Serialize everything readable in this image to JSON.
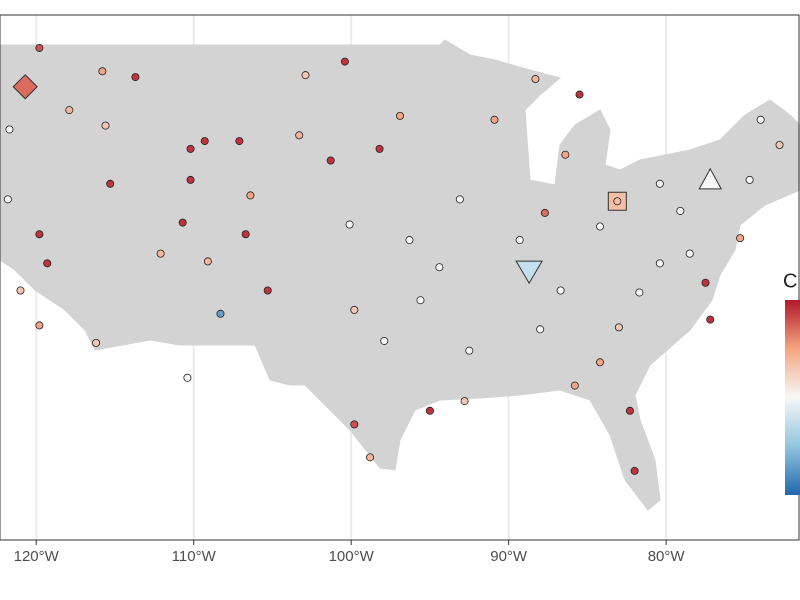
{
  "chart_data": {
    "type": "scatter",
    "xlim": [
      -122.3,
      -71.5
    ],
    "ylim": [
      23.44,
      50.5
    ],
    "xticks": [
      {
        "value": -120,
        "label": "120°W"
      },
      {
        "value": -110,
        "label": "110°W"
      },
      {
        "value": -100,
        "label": "100°W"
      },
      {
        "value": -90,
        "label": "90°W"
      },
      {
        "value": -80,
        "label": "80°W"
      }
    ],
    "grid": true,
    "legend_title": "C",
    "clim": [
      -1,
      1
    ],
    "colorscale": [
      "#2166ac",
      "#92c5de",
      "#f7f7f7",
      "#f4a582",
      "#b2182b"
    ],
    "points": {
      "x": [
        -119.8,
        -115.8,
        -113.7,
        -117.9,
        -115.6,
        -110.2,
        -109.3,
        -107.1,
        -110.2,
        -115.3,
        -106.4,
        -110.7,
        -106.7,
        -119.8,
        -119.3,
        -112.1,
        -109.1,
        -108.3,
        -110.4,
        -116.2,
        -105.3,
        -102.9,
        -100.4,
        -98.2,
        -100.1,
        -96.3,
        -99.8,
        -97.9,
        -99.8,
        -98.8,
        -95.0,
        -92.8,
        -90.9,
        -88.3,
        -85.5,
        -86.4,
        -87.7,
        -89.3,
        -86.7,
        -88.0,
        -85.8,
        -82.3,
        -82.0,
        -84.2,
        -81.7,
        -80.4,
        -77.5,
        -78.5,
        -75.3,
        -74.7,
        -72.8,
        -80.4,
        -79.1,
        -84.2,
        -93.1,
        -94.4,
        -95.6,
        -92.5,
        -121.7,
        -121.8,
        -121.0,
        -119.8,
        -103.3,
        -101.3,
        -96.9,
        -74.0,
        -83.0,
        -77.2
      ],
      "y": [
        48.8,
        47.6,
        47.3,
        45.6,
        44.8,
        43.6,
        44.0,
        44.0,
        42.0,
        41.8,
        41.2,
        39.8,
        39.2,
        39.2,
        37.7,
        38.2,
        37.8,
        35.1,
        31.8,
        33.6,
        36.3,
        47.4,
        48.1,
        43.6,
        39.7,
        38.9,
        35.3,
        33.7,
        29.4,
        27.7,
        30.1,
        30.6,
        45.1,
        47.2,
        46.4,
        43.3,
        40.3,
        38.9,
        36.3,
        34.3,
        31.4,
        30.1,
        27.0,
        32.6,
        36.2,
        37.7,
        36.7,
        38.2,
        39.0,
        42.0,
        43.8,
        41.8,
        40.4,
        39.6,
        41.0,
        37.5,
        35.8,
        33.2,
        44.6,
        41.0,
        36.3,
        34.5,
        44.3,
        43.0,
        45.3,
        45.1,
        34.4,
        34.8
      ],
      "values": [
        0.8,
        0.5,
        0.9,
        0.4,
        0.3,
        0.9,
        0.9,
        0.9,
        0.9,
        0.9,
        0.5,
        0.9,
        0.9,
        0.9,
        0.9,
        0.4,
        0.4,
        -0.7,
        0,
        0.3,
        0.9,
        0.3,
        0.9,
        0.9,
        0,
        0,
        0.3,
        0,
        0.8,
        0.4,
        0.9,
        0.3,
        0.5,
        0.4,
        0.9,
        0.5,
        0.7,
        0,
        0,
        0,
        0.5,
        0.9,
        0.9,
        0.5,
        0,
        0,
        0.9,
        0,
        0.5,
        0,
        0.3,
        0,
        0,
        0,
        0,
        0,
        0,
        0,
        0,
        0,
        0.3,
        0.5,
        0.4,
        0.9,
        0.5,
        0,
        0.3,
        0.9
      ]
    },
    "markers": [
      {
        "shape": "diamond",
        "x": -120.7,
        "y": 46.8,
        "value": 0.7
      },
      {
        "shape": "square",
        "x": -83.1,
        "y": 40.9,
        "value": 0.35
      },
      {
        "shape": "triangle-down",
        "x": -88.7,
        "y": 37.3,
        "value": -0.25
      },
      {
        "shape": "triangle-up",
        "x": -77.2,
        "y": 42.0,
        "value": 0
      }
    ]
  }
}
